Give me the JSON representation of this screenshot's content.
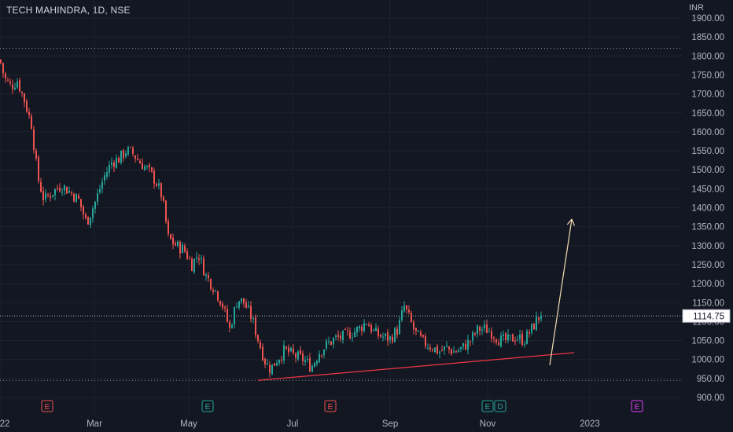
{
  "header": {
    "title": "TECH MAHINDRA, 1D, NSE",
    "currency": "INR"
  },
  "colors": {
    "background": "#131722",
    "grid": "#1e222d",
    "up": "#26a69a",
    "down": "#ef5350",
    "trendline": "#f23645",
    "arrow": "#f5deb3",
    "axis_text": "#b2b5be",
    "event_earnings": "#ef5350",
    "event_earnings_green": "#26a69a",
    "event_future": "#e040fb"
  },
  "chart_data": {
    "type": "candlestick",
    "title": "TECH MAHINDRA, 1D, NSE",
    "ylabel": "INR",
    "ylim": [
      890,
      1920
    ],
    "yticks": [
      "900.00",
      "950.00",
      "1000.00",
      "1050.00",
      "1100.00",
      "1150.00",
      "1200.00",
      "1250.00",
      "1300.00",
      "1350.00",
      "1400.00",
      "1450.00",
      "1500.00",
      "1550.00",
      "1600.00",
      "1650.00",
      "1700.00",
      "1750.00",
      "1800.00",
      "1850.00",
      "1900.00"
    ],
    "xticks": [
      "22",
      "Mar",
      "May",
      "Jul",
      "Sep",
      "Nov",
      "2023"
    ],
    "last_price": "1114.75",
    "reference_levels": [
      1820,
      945
    ],
    "anchor_path": [
      [
        0,
        1790
      ],
      [
        6,
        1740
      ],
      [
        14,
        1720
      ],
      [
        22,
        1735
      ],
      [
        30,
        1690
      ],
      [
        40,
        1620
      ],
      [
        48,
        1480
      ],
      [
        56,
        1420
      ],
      [
        66,
        1440
      ],
      [
        78,
        1460
      ],
      [
        90,
        1440
      ],
      [
        100,
        1420
      ],
      [
        110,
        1360
      ],
      [
        122,
        1420
      ],
      [
        132,
        1480
      ],
      [
        142,
        1520
      ],
      [
        152,
        1530
      ],
      [
        160,
        1550
      ],
      [
        168,
        1545
      ],
      [
        178,
        1520
      ],
      [
        188,
        1500
      ],
      [
        198,
        1470
      ],
      [
        206,
        1430
      ],
      [
        214,
        1320
      ],
      [
        224,
        1300
      ],
      [
        234,
        1290
      ],
      [
        244,
        1250
      ],
      [
        252,
        1280
      ],
      [
        262,
        1220
      ],
      [
        272,
        1190
      ],
      [
        282,
        1150
      ],
      [
        292,
        1080
      ],
      [
        302,
        1160
      ],
      [
        310,
        1150
      ],
      [
        320,
        1110
      ],
      [
        330,
        1040
      ],
      [
        338,
        990
      ],
      [
        344,
        975
      ],
      [
        352,
        1000
      ],
      [
        362,
        1025
      ],
      [
        374,
        1010
      ],
      [
        386,
        1000
      ],
      [
        396,
        980
      ],
      [
        406,
        1020
      ],
      [
        416,
        1040
      ],
      [
        426,
        1055
      ],
      [
        436,
        1060
      ],
      [
        446,
        1070
      ],
      [
        456,
        1080
      ],
      [
        466,
        1100
      ],
      [
        476,
        1070
      ],
      [
        486,
        1060
      ],
      [
        496,
        1055
      ],
      [
        506,
        1080
      ],
      [
        514,
        1140
      ],
      [
        520,
        1110
      ],
      [
        528,
        1070
      ],
      [
        538,
        1045
      ],
      [
        548,
        1035
      ],
      [
        558,
        1020
      ],
      [
        568,
        1030
      ],
      [
        578,
        1020
      ],
      [
        588,
        1030
      ],
      [
        598,
        1050
      ],
      [
        608,
        1080
      ],
      [
        618,
        1080
      ],
      [
        626,
        1070
      ],
      [
        636,
        1050
      ],
      [
        646,
        1050
      ],
      [
        656,
        1060
      ],
      [
        666,
        1050
      ],
      [
        676,
        1080
      ],
      [
        684,
        1110
      ],
      [
        688,
        1114.75
      ]
    ],
    "trendline": {
      "from": [
        328,
        945
      ],
      "to": [
        730,
        1018
      ]
    },
    "projection_arrow": {
      "from": [
        699,
        985
      ],
      "to": [
        727,
        1370
      ]
    },
    "events": [
      {
        "label": "E",
        "kind": "earnings-red",
        "x": 60
      },
      {
        "label": "E",
        "kind": "earnings-green",
        "x": 264
      },
      {
        "label": "E",
        "kind": "earnings-red",
        "x": 420
      },
      {
        "label": "E",
        "kind": "earnings-green",
        "x": 620
      },
      {
        "label": "D",
        "kind": "dividend",
        "x": 636
      },
      {
        "label": "E",
        "kind": "future",
        "x": 810
      }
    ]
  }
}
